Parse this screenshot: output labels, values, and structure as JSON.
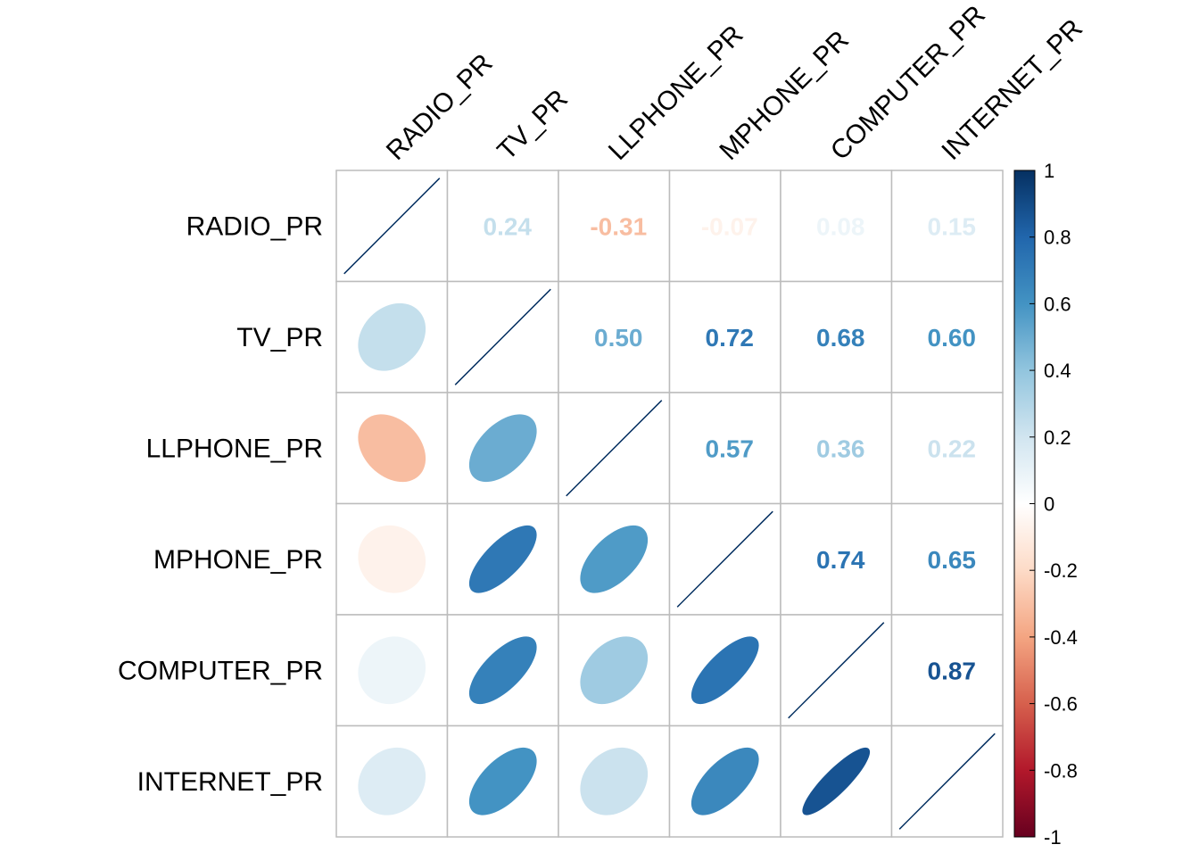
{
  "chart_data": {
    "type": "heatmap",
    "subtype": "corrplot-mixed",
    "lower_method": "ellipse",
    "upper_method": "number",
    "variables": [
      "RADIO_PR",
      "TV_PR",
      "LLPHONE_PR",
      "MPHONE_PR",
      "COMPUTER_PR",
      "INTERNET_PR"
    ],
    "matrix": [
      [
        1.0,
        0.24,
        -0.31,
        -0.07,
        0.08,
        0.15
      ],
      [
        0.24,
        1.0,
        0.5,
        0.72,
        0.68,
        0.6
      ],
      [
        -0.31,
        0.5,
        1.0,
        0.57,
        0.36,
        0.22
      ],
      [
        -0.07,
        0.72,
        0.57,
        1.0,
        0.74,
        0.65
      ],
      [
        0.08,
        0.68,
        0.36,
        0.74,
        1.0,
        0.87
      ],
      [
        0.15,
        0.6,
        0.22,
        0.65,
        0.87,
        1.0
      ]
    ],
    "upper_labels": [
      [
        "",
        "0.24",
        "-0.31",
        "-0.07",
        "0.08",
        "0.15"
      ],
      [
        "",
        "",
        "0.50",
        "0.72",
        "0.68",
        "0.60"
      ],
      [
        "",
        "",
        "",
        "0.57",
        "0.36",
        "0.22"
      ],
      [
        "",
        "",
        "",
        "",
        "0.74",
        "0.65"
      ],
      [
        "",
        "",
        "",
        "",
        "",
        "0.87"
      ],
      [
        "",
        "",
        "",
        "",
        "",
        ""
      ]
    ],
    "colorbar": {
      "range": [
        -1,
        1
      ],
      "ticks": [
        "1",
        "0.8",
        "0.6",
        "0.4",
        "0.2",
        "0",
        "-0.2",
        "-0.4",
        "-0.6",
        "-0.8",
        "-1"
      ]
    },
    "grid": true,
    "legend_position": "right"
  }
}
